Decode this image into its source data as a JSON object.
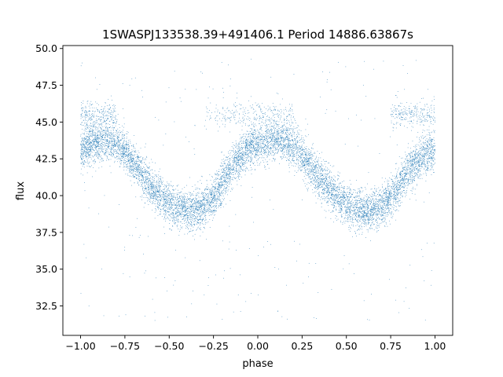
{
  "chart_data": {
    "type": "scatter",
    "title": "1SWASPJ133538.39+491406.1 Period 14886.63867s",
    "xlabel": "phase",
    "ylabel": "flux",
    "xlim": [
      -1.1,
      1.1
    ],
    "ylim": [
      30.5,
      50.2
    ],
    "grid": false,
    "legend": "none",
    "point_color": "#1f77b4",
    "x_ticks": [
      -1.0,
      -0.75,
      -0.5,
      -0.25,
      0.0,
      0.25,
      0.5,
      0.75,
      1.0
    ],
    "x_tick_labels": [
      "−1.00",
      "−0.75",
      "−0.50",
      "−0.25",
      "0.00",
      "0.25",
      "0.50",
      "0.75",
      "1.00"
    ],
    "y_ticks": [
      32.5,
      35.0,
      37.5,
      40.0,
      42.5,
      45.0,
      47.5,
      50.0
    ],
    "y_tick_labels": [
      "32.5",
      "35.0",
      "37.5",
      "40.0",
      "42.5",
      "45.0",
      "47.5",
      "50.0"
    ],
    "series": [
      {
        "x": [
          -1.0,
          -0.95,
          -0.9,
          -0.85,
          -0.8,
          -0.75,
          -0.7,
          -0.65,
          -0.6,
          -0.55,
          -0.5,
          -0.45,
          -0.4,
          -0.35,
          -0.3,
          -0.25,
          -0.2,
          -0.15,
          -0.1,
          -0.05,
          0.0,
          0.05,
          0.1,
          0.15,
          0.2,
          0.25,
          0.3,
          0.35,
          0.4,
          0.45,
          0.5,
          0.55,
          0.6,
          0.65,
          0.7,
          0.75,
          0.8,
          0.85,
          0.9,
          0.95,
          1.0
        ],
        "y": [
          43.0,
          43.5,
          43.6,
          43.7,
          43.6,
          43.0,
          42.2,
          41.4,
          40.6,
          40.0,
          39.4,
          39.1,
          39.0,
          39.0,
          39.2,
          39.8,
          40.8,
          41.8,
          42.6,
          43.3,
          43.5,
          43.7,
          43.8,
          43.7,
          43.4,
          42.8,
          42.0,
          41.2,
          40.5,
          39.9,
          39.4,
          39.1,
          38.9,
          39.0,
          39.3,
          39.9,
          40.8,
          41.6,
          42.3,
          42.9,
          43.0
        ],
        "scatter_sd": 0.9,
        "n_points": 9000,
        "outlier_band": {
          "y": 45.5,
          "x_ranges": [
            [
              -1.0,
              -0.8
            ],
            [
              -0.3,
              0.2
            ],
            [
              0.75,
              1.0
            ]
          ]
        },
        "outlier_y_range": [
          31.3,
          49.3
        ]
      }
    ]
  }
}
